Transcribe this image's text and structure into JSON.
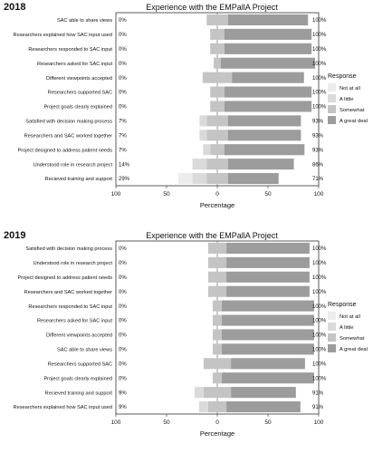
{
  "chart_data": [
    {
      "type": "bar",
      "panel_label": "2018",
      "title": "Experience with the EMPallA Project",
      "xlabel": "Percentage",
      "x_ticks": [
        "100",
        "50",
        "0",
        "50",
        "100"
      ],
      "xlim": [
        -100,
        100
      ],
      "stacked": "diverging",
      "legend_title": "Response",
      "legend_position": "right",
      "series_names": [
        "Not at all",
        "A little",
        "Somewhat",
        "A great deal"
      ],
      "colors": [
        "#ececec",
        "#dadada",
        "#c4c4c4",
        "#9c9c9c"
      ],
      "categories": [
        "SAC able to share views",
        "Researchers explained how SAC input used",
        "Researchers responded to SAC input",
        "Researchers asked for SAC input",
        "Different viewpoints accepted",
        "Researchers supported SAC",
        "Project goals clearly explained",
        "Satisfied with decision making process",
        "Researchers and SAC worked together",
        "Project designed to address patient needs",
        "Understood role in research project",
        "Recieved training and support"
      ],
      "series": [
        {
          "name": "Not at all",
          "values": [
            0,
            0,
            0,
            0,
            0,
            0,
            0,
            0,
            0,
            0,
            0,
            14
          ]
        },
        {
          "name": "A little",
          "values": [
            0,
            0,
            0,
            0,
            0,
            0,
            0,
            7,
            7,
            7,
            14,
            14
          ]
        },
        {
          "name": "Somewhat",
          "values": [
            21,
            14,
            14,
            7,
            29,
            14,
            14,
            21,
            21,
            14,
            21,
            21
          ]
        },
        {
          "name": "A great deal",
          "values": [
            79,
            86,
            86,
            93,
            71,
            86,
            86,
            72,
            72,
            79,
            65,
            50
          ]
        }
      ],
      "left_labels": [
        "0%",
        "0%",
        "0%",
        "0%",
        "0%",
        "0%",
        "0%",
        "7%",
        "7%",
        "7%",
        "14%",
        "29%"
      ],
      "right_labels": [
        "100%",
        "100%",
        "100%",
        "100%",
        "100%",
        "100%",
        "100%",
        "93%",
        "93%",
        "93%",
        "86%",
        "71%"
      ]
    },
    {
      "type": "bar",
      "panel_label": "2019",
      "title": "Experience with the EMPallA Project",
      "xlabel": "Percentage",
      "x_ticks": [
        "100",
        "50",
        "0",
        "50",
        "100"
      ],
      "xlim": [
        -100,
        100
      ],
      "stacked": "diverging",
      "legend_title": "Response",
      "legend_position": "right",
      "series_names": [
        "Not at all",
        "A little",
        "Somewhat",
        "A great deal"
      ],
      "colors": [
        "#ececec",
        "#dadada",
        "#c4c4c4",
        "#9c9c9c"
      ],
      "categories": [
        "Satisfied with decision making process",
        "Understood role in research project",
        "Project designed to address patient needs",
        "Researchers and SAC worked together",
        "Researchers responded to SAC input",
        "Researchers asked for SAC input",
        "Different viewpoints accepted",
        "SAC able to share views",
        "Researchers supported SAC",
        "Project goals clearly explained",
        "Recieved training and support",
        "Researchers explained how SAC input used"
      ],
      "series": [
        {
          "name": "Not at all",
          "values": [
            0,
            0,
            0,
            0,
            0,
            0,
            0,
            0,
            0,
            0,
            0,
            0
          ]
        },
        {
          "name": "A little",
          "values": [
            0,
            0,
            0,
            0,
            0,
            0,
            0,
            0,
            0,
            0,
            9,
            9
          ]
        },
        {
          "name": "Somewhat",
          "values": [
            18,
            18,
            18,
            18,
            9,
            9,
            9,
            9,
            27,
            9,
            27,
            18
          ]
        },
        {
          "name": "A great deal",
          "values": [
            82,
            82,
            82,
            82,
            91,
            91,
            91,
            91,
            73,
            91,
            64,
            73
          ]
        }
      ],
      "left_labels": [
        "0%",
        "0%",
        "0%",
        "0%",
        "0%",
        "0%",
        "0%",
        "0%",
        "0%",
        "0%",
        "9%",
        "9%"
      ],
      "right_labels": [
        "100%",
        "100%",
        "100%",
        "100%",
        "100%",
        "100%",
        "100%",
        "100%",
        "100%",
        "100%",
        "91%",
        "91%"
      ]
    }
  ]
}
